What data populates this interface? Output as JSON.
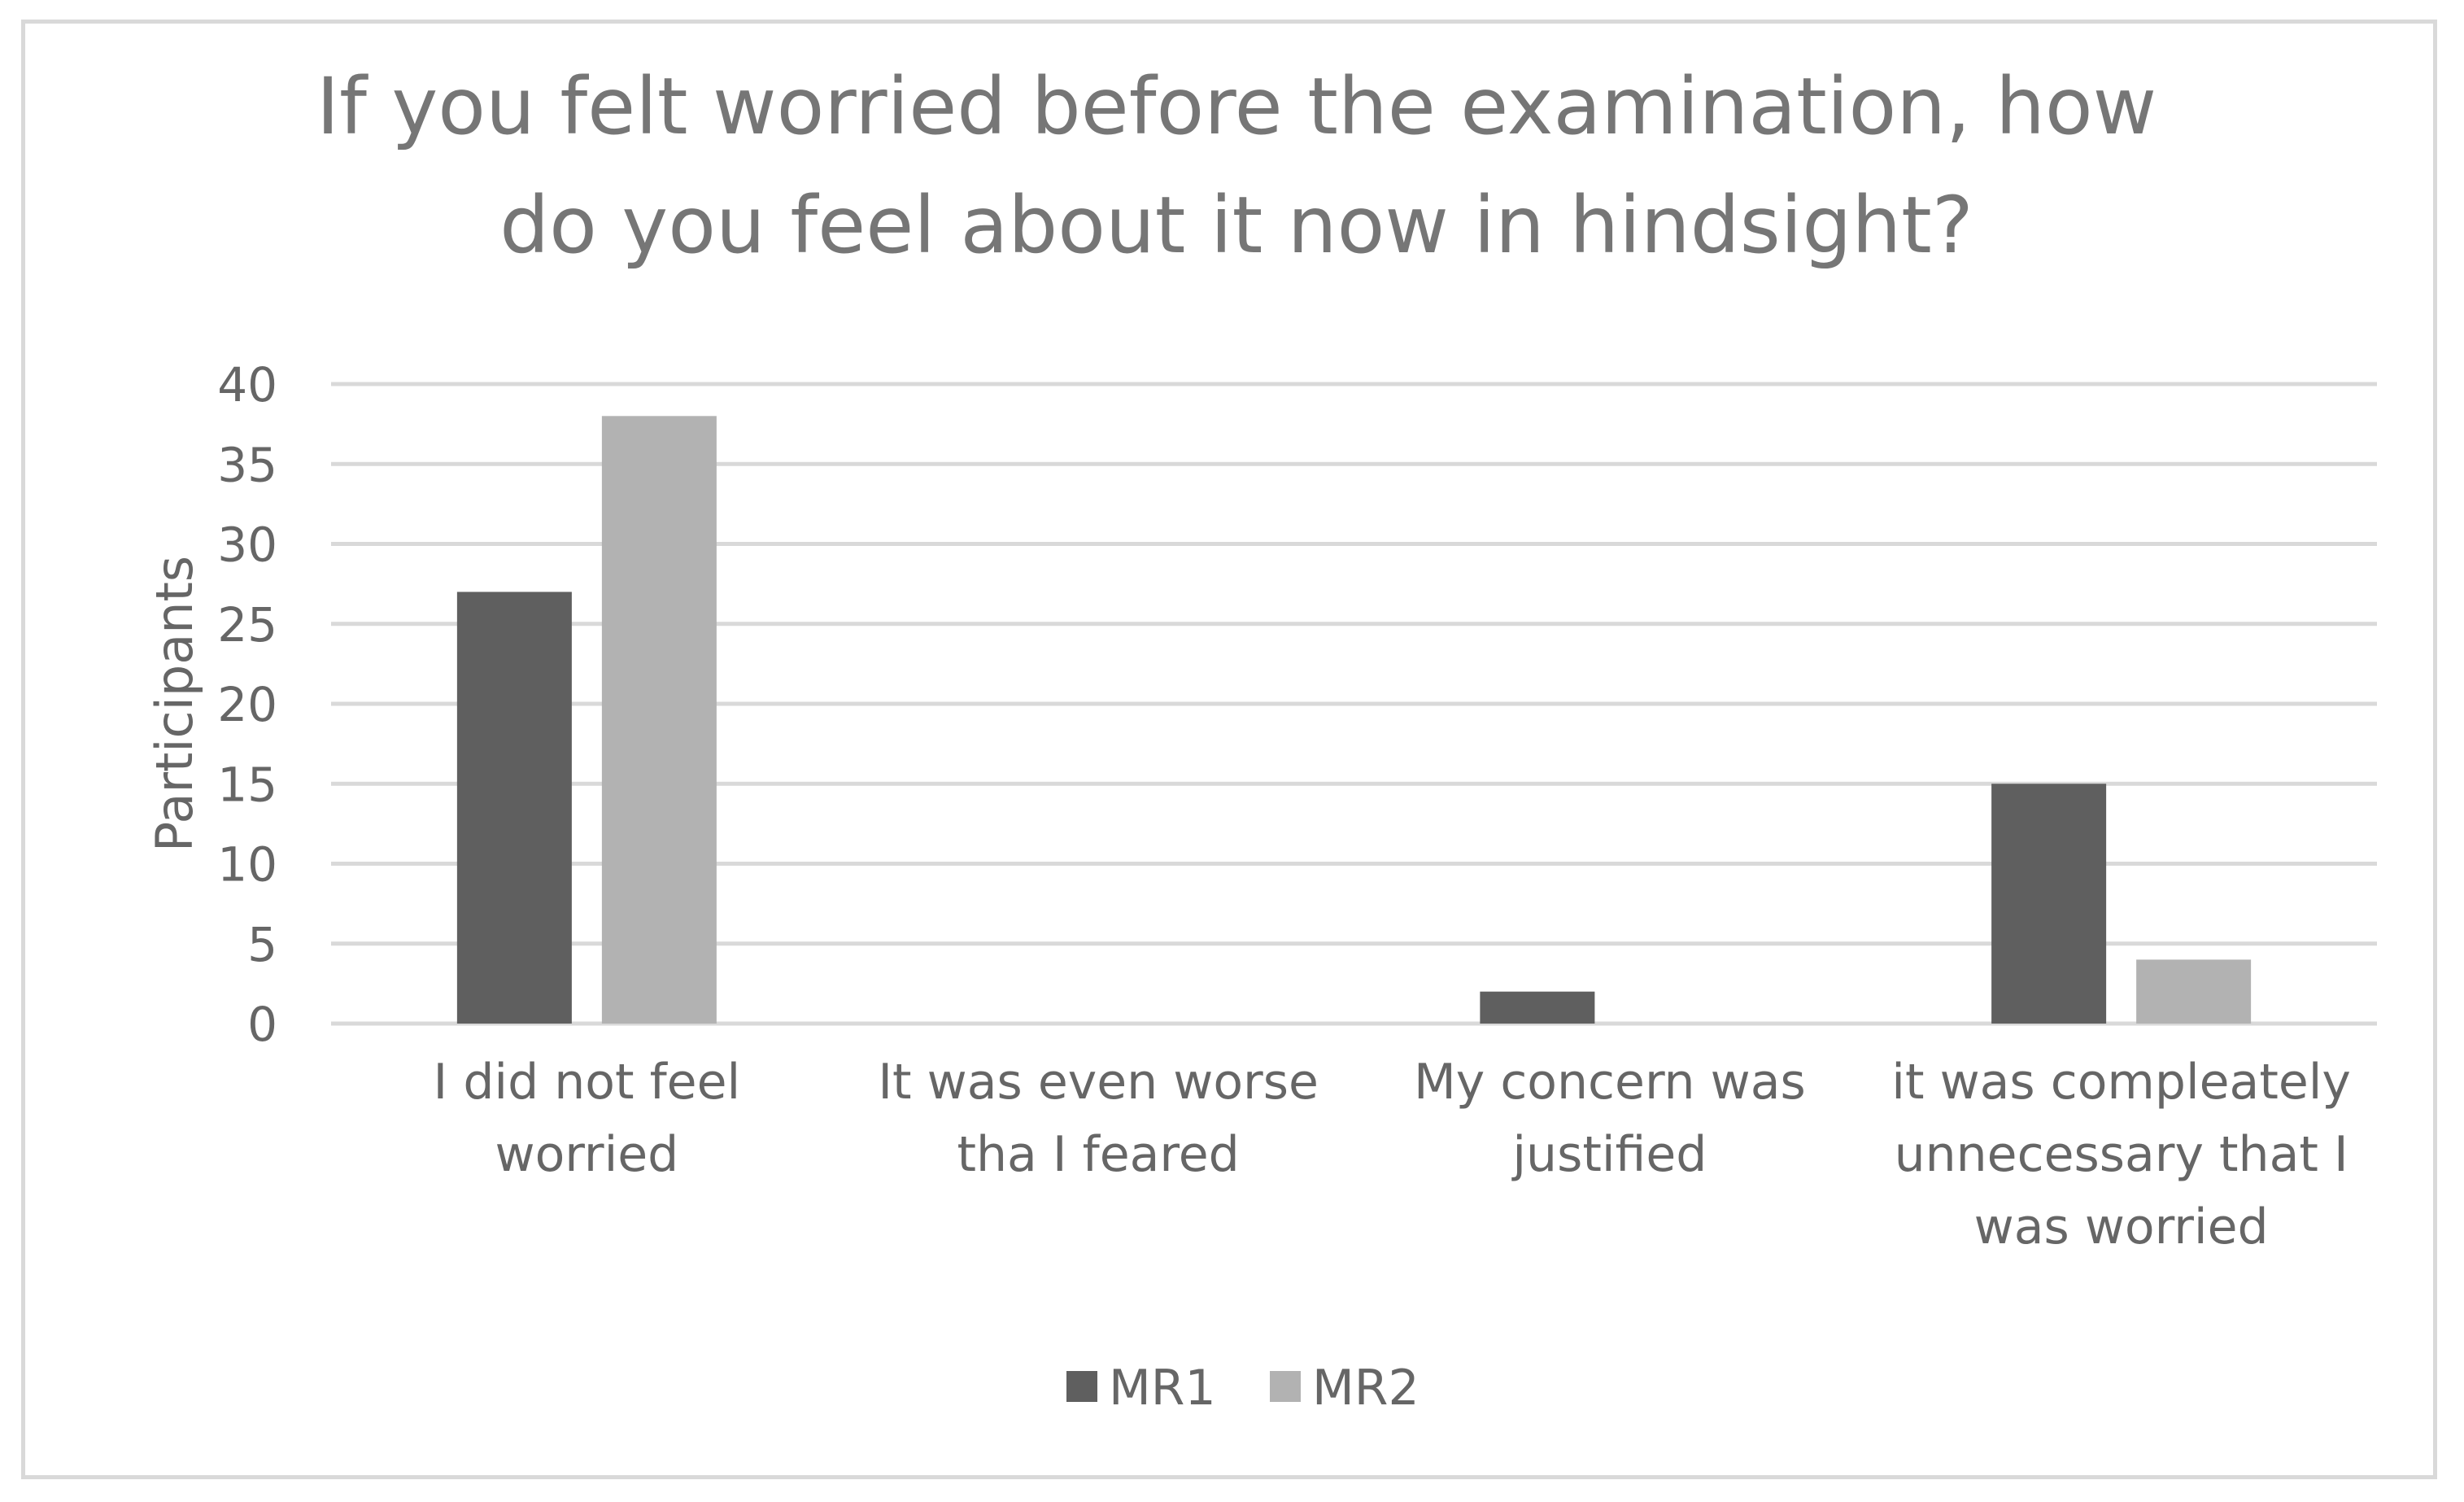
{
  "chart_data": {
    "type": "bar",
    "title_lines": [
      "If you felt worried before the examination, how",
      "do you feel about it now in hindsight?"
    ],
    "ylabel": "Participants",
    "xlabel": "",
    "ylim": [
      0,
      40
    ],
    "yticks": [
      0,
      5,
      10,
      15,
      20,
      25,
      30,
      35,
      40
    ],
    "grid": true,
    "legend_position": "bottom",
    "categories": [
      [
        "I did not feel",
        "worried"
      ],
      [
        "It was even worse",
        "tha I feared"
      ],
      [
        "My concern was",
        "justified"
      ],
      [
        "it was compleately",
        "unnecessary that I",
        "was worried"
      ]
    ],
    "series": [
      {
        "name": "MR1",
        "color": "#5f5f5f",
        "values": [
          27,
          0,
          2,
          15
        ]
      },
      {
        "name": "MR2",
        "color": "#b2b2b2",
        "values": [
          38,
          0,
          0,
          4
        ]
      }
    ],
    "gridline_color": "#d9d9d9"
  }
}
